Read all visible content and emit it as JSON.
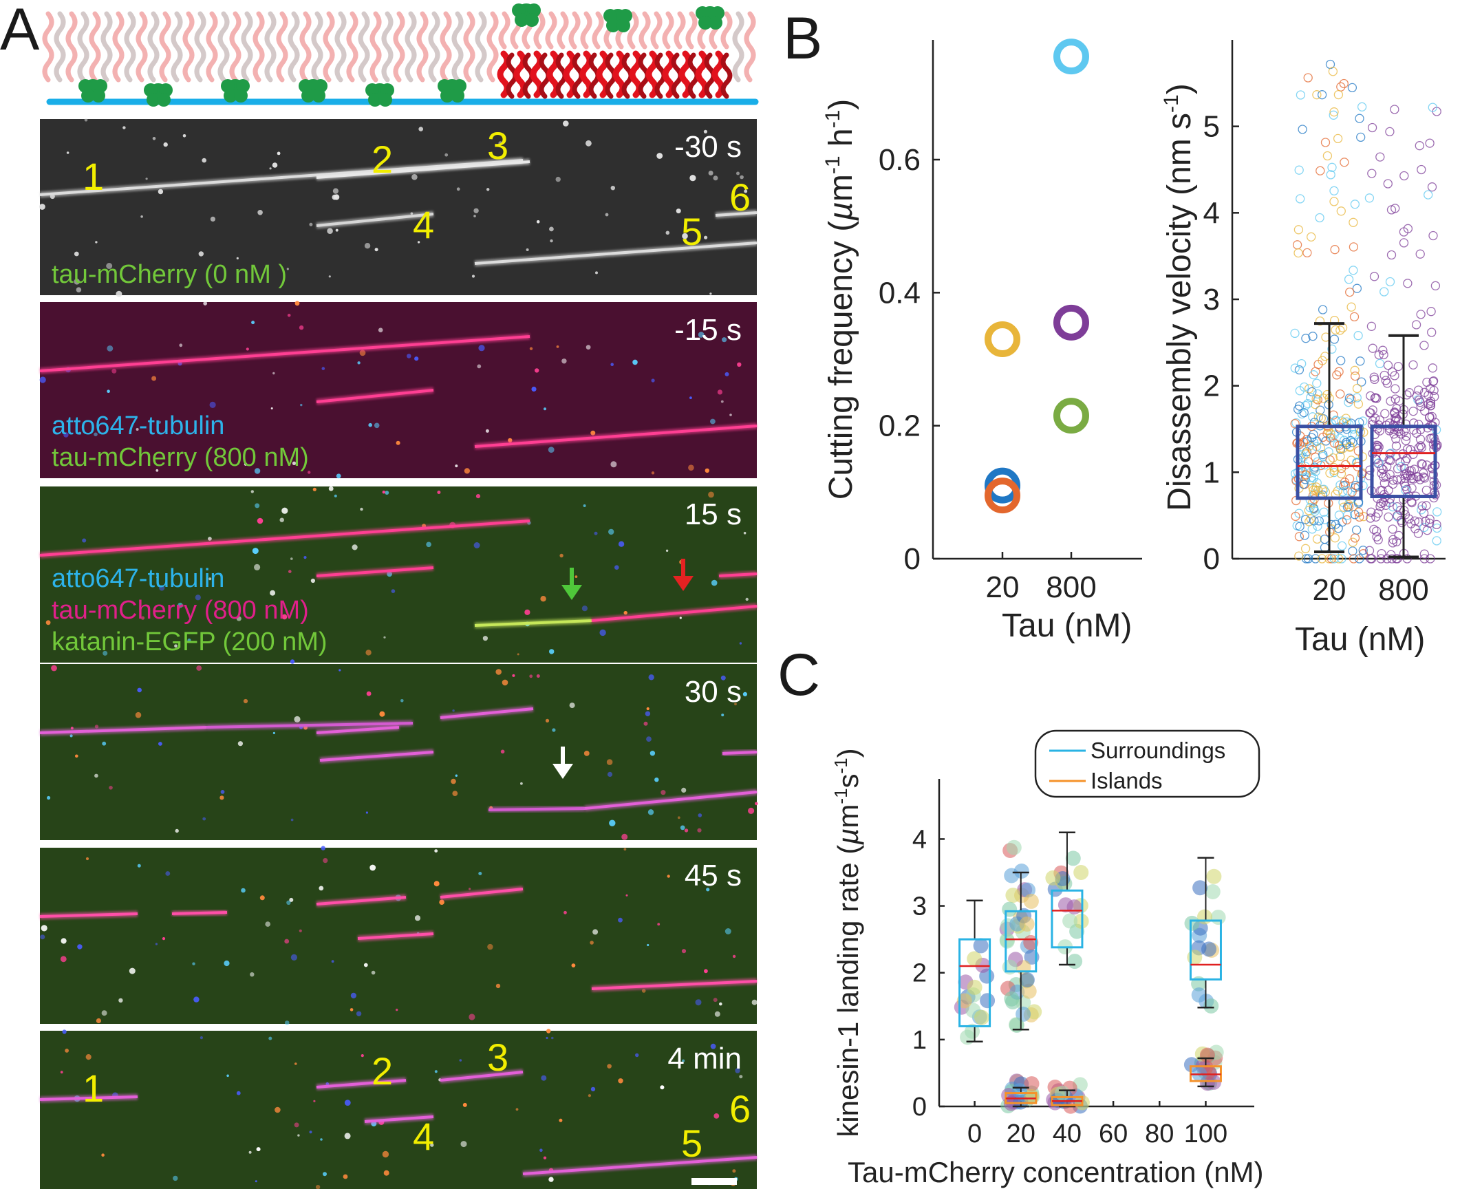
{
  "panels": {
    "a": "A",
    "b": "B",
    "c": "C"
  },
  "colors": {
    "blue": "#1f77c4",
    "orange": "#e3672d",
    "yellow": "#e8b53a",
    "purple": "#7e3d98",
    "green": "#7aab43",
    "light_blue": "#5ec8f0",
    "box_dark_blue": "#3a4fa3",
    "median_red": "#e02020",
    "surroundings": "#2ab3e4",
    "islands": "#f5922a"
  },
  "kymo": {
    "frames": [
      {
        "time": "-30 s",
        "labels": [
          "tau-mCherry (0 nM )"
        ],
        "label_colors": [
          "#72c83a"
        ]
      },
      {
        "time": "-15 s",
        "labels": [
          "atto647-tubulin",
          "tau-mCherry (800 nM)"
        ],
        "label_colors": [
          "#2db3ea",
          "#72c83a"
        ]
      },
      {
        "time": "15 s",
        "labels": [
          "atto647-tubulin",
          "tau-mCherry (800 nM)",
          "katanin-EGFP (200 nM)"
        ],
        "label_colors": [
          "#2db3ea",
          "#e0208a",
          "#72c83a"
        ]
      },
      {
        "time": "30 s",
        "labels": [],
        "label_colors": []
      },
      {
        "time": "45 s",
        "labels": [],
        "label_colors": []
      },
      {
        "time": "4 min",
        "labels": [],
        "label_colors": []
      }
    ],
    "mt_numbers": [
      "1",
      "2",
      "3",
      "4",
      "5",
      "6"
    ]
  },
  "chart_data": [
    {
      "type": "scatter",
      "panel": "B",
      "xlabel": "Tau (nM)",
      "ylabel": "Cutting frequency (µm⁻¹ h⁻¹)",
      "ylim": [
        0,
        0.78
      ],
      "yticks": [
        0,
        0.2,
        0.4,
        0.6
      ],
      "categories": [
        "20",
        "800"
      ],
      "points": [
        {
          "x": "20",
          "y": 0.33,
          "color": "#e8b53a"
        },
        {
          "x": "20",
          "y": 0.11,
          "color": "#1f77c4"
        },
        {
          "x": "20",
          "y": 0.095,
          "color": "#e3672d"
        },
        {
          "x": "800",
          "y": 0.755,
          "color": "#5ec8f0"
        },
        {
          "x": "800",
          "y": 0.355,
          "color": "#7e3d98"
        },
        {
          "x": "800",
          "y": 0.215,
          "color": "#7aab43"
        }
      ]
    },
    {
      "type": "box",
      "panel": "B",
      "xlabel": "Tau (nM)",
      "ylabel": "Disassembly velocity (nm s⁻¹)",
      "ylim": [
        0,
        6
      ],
      "yticks": [
        0,
        1,
        2,
        3,
        4,
        5
      ],
      "categories": [
        "20",
        "800"
      ],
      "boxes": [
        {
          "category": "20",
          "whisker_low": 0.08,
          "q1": 0.7,
          "median": 1.07,
          "q3": 1.53,
          "whisker_high": 2.72
        },
        {
          "category": "800",
          "whisker_low": 0.02,
          "q1": 0.72,
          "median": 1.22,
          "q3": 1.53,
          "whisker_high": 2.58
        }
      ]
    },
    {
      "type": "box",
      "panel": "C",
      "xlabel": "Tau-mCherry concentration (nM)",
      "ylabel": "kinesin-1 landing rate (µm⁻¹s⁻¹)",
      "xlim": [
        -10,
        110
      ],
      "xticks": [
        0,
        20,
        40,
        60,
        80,
        100
      ],
      "ylim": [
        0,
        4.9
      ],
      "yticks": [
        0,
        1,
        2,
        3,
        4
      ],
      "legend": [
        "Surroundings",
        "Islands"
      ],
      "legend_position": "top",
      "surroundings": [
        {
          "x": 0,
          "whisker_low": 0.97,
          "q1": 1.2,
          "median": 2.1,
          "q3": 2.5,
          "whisker_high": 3.08
        },
        {
          "x": 20,
          "whisker_low": 1.15,
          "q1": 2.02,
          "median": 2.5,
          "q3": 2.92,
          "whisker_high": 3.5
        },
        {
          "x": 40,
          "whisker_low": 2.12,
          "q1": 2.38,
          "median": 2.93,
          "q3": 3.23,
          "whisker_high": 4.1
        },
        {
          "x": 100,
          "whisker_low": 1.48,
          "q1": 1.9,
          "median": 2.12,
          "q3": 2.78,
          "whisker_high": 3.72
        }
      ],
      "islands": [
        {
          "x": 20,
          "whisker_low": 0.0,
          "q1": 0.05,
          "median": 0.12,
          "q3": 0.2,
          "whisker_high": 0.28
        },
        {
          "x": 40,
          "whisker_low": 0.0,
          "q1": 0.02,
          "median": 0.08,
          "q3": 0.14,
          "whisker_high": 0.24
        },
        {
          "x": 100,
          "whisker_low": 0.3,
          "q1": 0.38,
          "median": 0.48,
          "q3": 0.6,
          "whisker_high": 0.72
        }
      ]
    }
  ]
}
